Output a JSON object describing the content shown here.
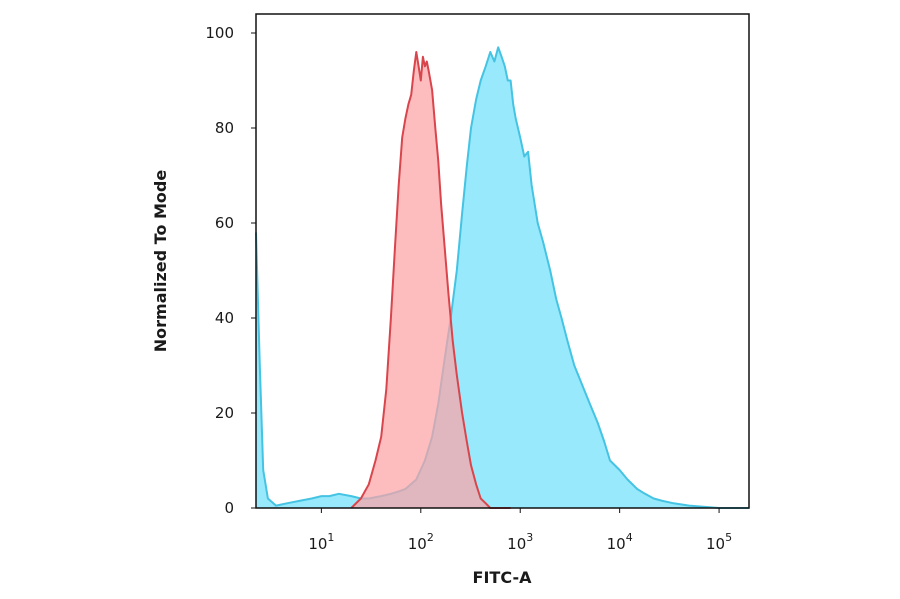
{
  "chart_data": {
    "type": "area",
    "title": "",
    "xlabel": "FITC-A",
    "ylabel": "Normalized To Mode",
    "x_scale": "log",
    "xlim": [
      2.2,
      200000
    ],
    "ylim": [
      0,
      104
    ],
    "grid": false,
    "x_ticks": [
      {
        "value": 10,
        "base": "10",
        "exp": "1"
      },
      {
        "value": 100,
        "base": "10",
        "exp": "2"
      },
      {
        "value": 1000,
        "base": "10",
        "exp": "3"
      },
      {
        "value": 10000,
        "base": "10",
        "exp": "4"
      },
      {
        "value": 100000,
        "base": "10",
        "exp": "5"
      }
    ],
    "y_ticks": [
      {
        "value": 0,
        "label": "0"
      },
      {
        "value": 20,
        "label": "20"
      },
      {
        "value": 40,
        "label": "40"
      },
      {
        "value": 60,
        "label": "60"
      },
      {
        "value": 80,
        "label": "80"
      },
      {
        "value": 100,
        "label": "100"
      }
    ],
    "series": [
      {
        "color_fill": "#97e9fb",
        "color_line": "#45c3e3",
        "x": [
          2.2,
          2.4,
          2.6,
          2.9,
          3.5,
          4.5,
          6,
          8,
          10,
          12,
          15,
          20,
          25,
          30,
          40,
          50,
          60,
          70,
          90,
          110,
          130,
          150,
          170,
          200,
          230,
          260,
          290,
          320,
          360,
          400,
          450,
          500,
          550,
          600,
          650,
          700,
          750,
          800,
          850,
          900,
          1000,
          1100,
          1200,
          1300,
          1500,
          1700,
          2000,
          2300,
          2600,
          3000,
          3500,
          4000,
          5000,
          6000,
          7000,
          8000,
          10000,
          12000,
          15000,
          18000,
          22000,
          27000,
          35000,
          50000,
          100000,
          200000
        ],
        "values": [
          58,
          30,
          8,
          2,
          0.5,
          1,
          1.5,
          2,
          2.5,
          2.5,
          3,
          2.5,
          2,
          2,
          2.5,
          3,
          3.5,
          4,
          6,
          10,
          15,
          22,
          30,
          40,
          50,
          62,
          72,
          80,
          86,
          90,
          93,
          96,
          94,
          97,
          95,
          93,
          90,
          90,
          85,
          82,
          78,
          74,
          75,
          68,
          60,
          56,
          50,
          44,
          40,
          35,
          30,
          27,
          22,
          18,
          14,
          10,
          8,
          6,
          4,
          3,
          2,
          1.5,
          1,
          0.5,
          0,
          0
        ]
      },
      {
        "color_fill": "#fca3a6",
        "color_line": "#d9454c",
        "x": [
          20,
          25,
          30,
          35,
          40,
          45,
          50,
          55,
          60,
          65,
          70,
          75,
          80,
          85,
          90,
          95,
          100,
          105,
          110,
          115,
          120,
          130,
          140,
          150,
          160,
          175,
          190,
          210,
          230,
          260,
          290,
          320,
          360,
          400,
          450,
          500,
          600,
          800
        ],
        "values": [
          0,
          2,
          5,
          10,
          15,
          25,
          40,
          55,
          68,
          78,
          82,
          85,
          87,
          92,
          96,
          93,
          90,
          95,
          93,
          94,
          92,
          88,
          80,
          73,
          64,
          54,
          45,
          35,
          28,
          20,
          14,
          9,
          5,
          2,
          1,
          0,
          0,
          0
        ]
      }
    ]
  }
}
